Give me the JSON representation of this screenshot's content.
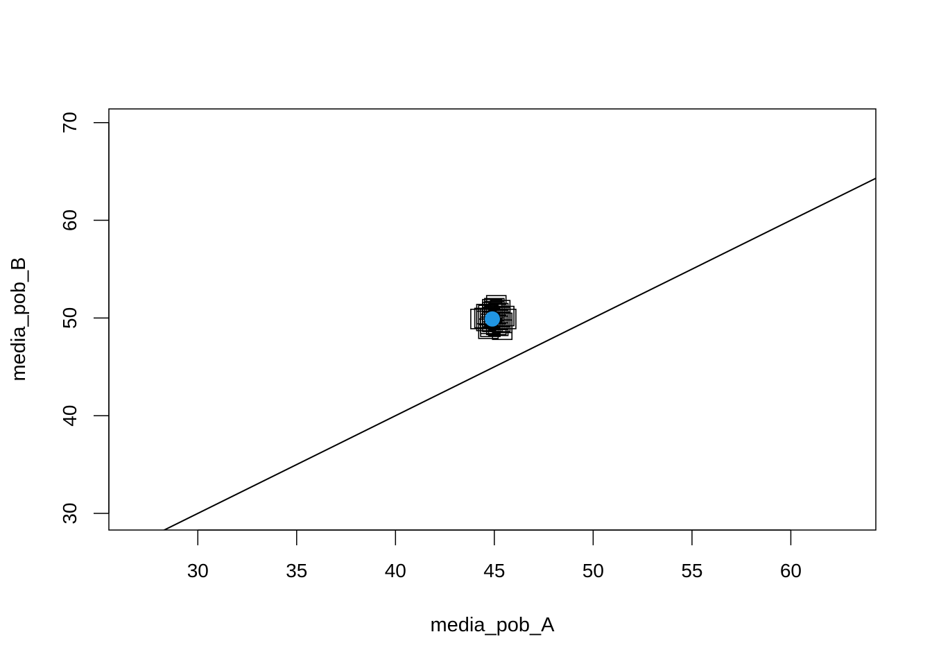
{
  "chart_data": {
    "type": "scatter",
    "title": "",
    "xlabel": "media_pob_A",
    "ylabel": "media_pob_B",
    "xlim": [
      25.5,
      64.3
    ],
    "ylim": [
      28.3,
      71.4
    ],
    "x_ticks": [
      30,
      35,
      40,
      45,
      50,
      55,
      60
    ],
    "y_ticks": [
      30,
      40,
      50,
      60,
      70
    ],
    "x_tick_labels": [
      "30",
      "35",
      "40",
      "45",
      "50",
      "55",
      "60"
    ],
    "y_tick_labels": [
      "30",
      "40",
      "50",
      "60",
      "70"
    ],
    "grid": false,
    "legend": "none",
    "series": [
      {
        "marker": "square-open",
        "color": "#000000",
        "points": [
          [
            44.8,
            50.0
          ],
          [
            45.0,
            50.2
          ],
          [
            45.2,
            49.8
          ],
          [
            44.9,
            49.6
          ],
          [
            45.1,
            50.4
          ],
          [
            44.7,
            50.3
          ],
          [
            45.3,
            50.1
          ],
          [
            45.0,
            49.9
          ],
          [
            44.6,
            49.7
          ],
          [
            45.4,
            49.5
          ],
          [
            44.9,
            50.6
          ],
          [
            45.1,
            49.3
          ],
          [
            44.5,
            50.0
          ],
          [
            45.2,
            50.5
          ],
          [
            45.0,
            51.0
          ],
          [
            45.4,
            48.8
          ],
          [
            44.3,
            49.9
          ],
          [
            45.6,
            49.9
          ],
          [
            44.8,
            49.1
          ],
          [
            45.3,
            50.8
          ],
          [
            44.7,
            48.9
          ],
          [
            45.1,
            51.3
          ],
          [
            44.9,
            50.9
          ],
          [
            45.2,
            49.2
          ],
          [
            44.6,
            50.4
          ],
          [
            45.5,
            50.2
          ],
          [
            44.8,
            49.4
          ],
          [
            45.0,
            50.7
          ],
          [
            45.3,
            49.6
          ],
          [
            44.9,
            50.1
          ]
        ]
      },
      {
        "marker": "filled-circle",
        "color": "#2196e3",
        "points": [
          [
            44.9,
            49.9
          ]
        ]
      }
    ],
    "lines": [
      {
        "type": "abline",
        "intercept": 0,
        "slope": 1,
        "color": "#000000"
      }
    ]
  }
}
